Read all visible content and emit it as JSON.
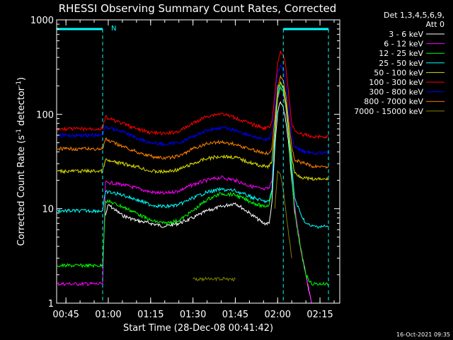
{
  "chart_data": {
    "type": "line",
    "title": "RHESSI Observing Summary Count Rates, Corrected",
    "xlabel": "Start Time (28-Dec-08 00:41:42)",
    "ylabel": "Corrected Count Rate (s⁻¹ detector⁻¹)",
    "ylabel_main": "Corrected Count Rate (s",
    "ylabel_sup1": "-1",
    "ylabel_mid": " detector",
    "ylabel_sup2": "-1",
    "ylabel_end": ")",
    "yscale": "log",
    "ylim": [
      1,
      1000
    ],
    "xlim": [
      "00:41:42",
      "02:22:00"
    ],
    "x_ticks": [
      "00:45",
      "01:00",
      "01:15",
      "01:30",
      "01:45",
      "02:00",
      "02:15"
    ],
    "y_ticks": [
      "1",
      "10",
      "100",
      "1000"
    ],
    "grid": false,
    "legend_position": "top-right",
    "legend_header": [
      "Det 1,3,4,5,6,9,",
      "Att 0"
    ],
    "timestamp": "16-Oct-2021 09:35",
    "flag_label": "N",
    "flag_bars": [
      [
        "00:41:42",
        "00:58:00"
      ],
      [
        "02:02:00",
        "02:18:00"
      ]
    ],
    "time_markers": [
      "00:58:00",
      "02:02:00",
      "02:18:00"
    ],
    "x": [
      "00:42",
      "00:45",
      "00:50",
      "00:56",
      "00:58",
      "00:59",
      "01:00",
      "01:05",
      "01:10",
      "01:15",
      "01:20",
      "01:25",
      "01:30",
      "01:35",
      "01:40",
      "01:45",
      "01:50",
      "01:55",
      "01:57",
      "01:58",
      "01:59",
      "02:00",
      "02:01",
      "02:02",
      "02:03",
      "02:04",
      "02:05",
      "02:06",
      "02:08",
      "02:10",
      "02:12",
      "02:14",
      "02:16",
      "02:17",
      "02:18"
    ],
    "series": [
      {
        "name": "3 - 6 keV",
        "color": "#ffffff",
        "values": [
          null,
          null,
          null,
          null,
          null,
          8.5,
          11,
          8.5,
          7.5,
          7,
          6.5,
          7,
          8,
          9.5,
          10.5,
          11.5,
          9,
          7,
          7,
          12,
          45,
          105,
          135,
          120,
          80,
          45,
          20,
          10,
          4,
          2,
          1,
          null,
          null,
          null,
          null
        ]
      },
      {
        "name": "6 - 12 keV",
        "color": "#ff00ff",
        "values": [
          1.6,
          1.6,
          1.6,
          1.6,
          1.6,
          19,
          19,
          18,
          16.5,
          15,
          14.5,
          15.5,
          18,
          20,
          21.5,
          20,
          17.5,
          16,
          16.5,
          20,
          60,
          150,
          190,
          170,
          110,
          55,
          25,
          11,
          4,
          2,
          1,
          null,
          null,
          null,
          null
        ]
      },
      {
        "name": "12 - 25 keV",
        "color": "#00ff00",
        "values": [
          2.5,
          2.5,
          2.5,
          2.5,
          2.5,
          12,
          12,
          10.5,
          9,
          7.5,
          7,
          7.5,
          9.5,
          12.5,
          14.5,
          14,
          12,
          10.5,
          11,
          16,
          60,
          150,
          195,
          175,
          115,
          55,
          22,
          9,
          4,
          2,
          1.6,
          1.6,
          1.6,
          1.6,
          1.6
        ]
      },
      {
        "name": "25 - 50 keV",
        "color": "#00ffff",
        "values": [
          9.5,
          9.5,
          9.5,
          9.5,
          9.5,
          15,
          15,
          14,
          12.5,
          11,
          10.5,
          11,
          13,
          15,
          16,
          15.5,
          13.5,
          12,
          12,
          16,
          60,
          160,
          215,
          195,
          125,
          60,
          28,
          13,
          9,
          7,
          6.5,
          6.5,
          6.5,
          6.5,
          6.5
        ]
      },
      {
        "name": "50 - 100 keV",
        "color": "#dddd00",
        "values": [
          25,
          25,
          25,
          25,
          25,
          33,
          32,
          30,
          28,
          25,
          24.5,
          26,
          30,
          34,
          36,
          35,
          31,
          28,
          28,
          32,
          70,
          180,
          220,
          200,
          130,
          65,
          35,
          24,
          22,
          21,
          20.5,
          20.5,
          20.5,
          20.5,
          20.5
        ]
      },
      {
        "name": "100 - 300 keV",
        "color": "#ff0000",
        "values": [
          70,
          70,
          70,
          70,
          70,
          95,
          90,
          80,
          70,
          64,
          62,
          66,
          80,
          96,
          102,
          92,
          80,
          72,
          72,
          85,
          160,
          350,
          470,
          430,
          300,
          150,
          80,
          68,
          62,
          60,
          58,
          58,
          58,
          58,
          58
        ]
      },
      {
        "name": "300 - 800 keV",
        "color": "#0000ff",
        "values": [
          60,
          60,
          60,
          60,
          60,
          75,
          72,
          66,
          56,
          50,
          48,
          50,
          58,
          68,
          72,
          68,
          60,
          54,
          54,
          65,
          130,
          270,
          330,
          310,
          210,
          110,
          60,
          45,
          42,
          40,
          39,
          39,
          39,
          39,
          39
        ]
      },
      {
        "name": "800 - 7000 keV",
        "color": "#ff8000",
        "values": [
          43,
          43,
          43,
          43,
          43,
          55,
          52,
          46,
          40,
          36,
          34,
          36,
          43,
          49,
          51,
          48,
          43,
          39,
          39,
          45,
          90,
          200,
          255,
          230,
          155,
          80,
          45,
          33,
          31,
          30,
          28,
          28,
          28,
          28,
          28
        ]
      },
      {
        "name": "7000 - 15000 keV",
        "color": "#808000",
        "values": [
          null,
          null,
          null,
          null,
          null,
          null,
          null,
          null,
          null,
          null,
          null,
          null,
          1.8,
          1.8,
          1.8,
          1.8,
          null,
          null,
          null,
          null,
          10,
          25,
          23,
          16,
          9,
          5,
          3,
          null,
          null,
          null,
          null,
          null,
          null,
          null,
          null
        ]
      }
    ]
  }
}
